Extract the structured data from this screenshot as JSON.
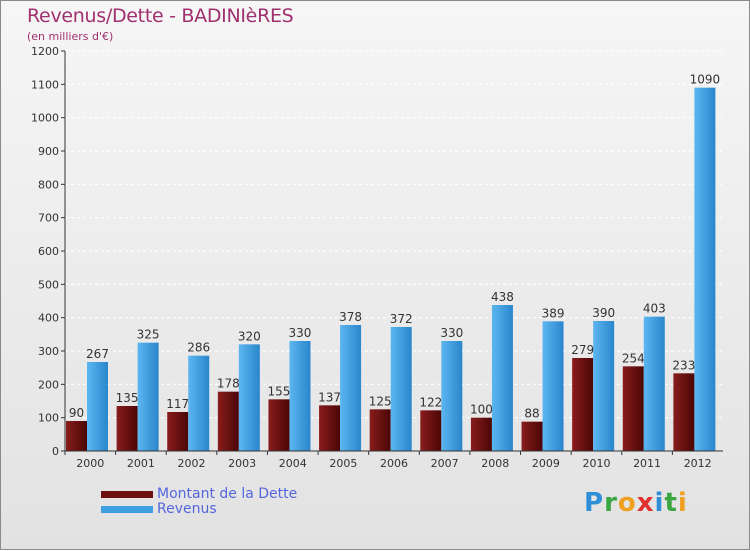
{
  "header": {
    "title": "Revenus/Dette - BADINIèRES",
    "subtitle": "(en milliers d'€)"
  },
  "chart_data": {
    "type": "bar",
    "title": "Revenus/Dette - BADINIèRES",
    "ylabel": "(en milliers d'€)",
    "xlabel": "",
    "ylim": [
      0,
      1200
    ],
    "yticks": [
      0,
      100,
      200,
      300,
      400,
      500,
      600,
      700,
      800,
      900,
      1000,
      1100,
      1200
    ],
    "grid": true,
    "categories": [
      "2000",
      "2001",
      "2002",
      "2003",
      "2004",
      "2005",
      "2006",
      "2007",
      "2008",
      "2009",
      "2010",
      "2011",
      "2012"
    ],
    "series": [
      {
        "name": "Montant de la Dette",
        "color": "#7a1010",
        "values": [
          90,
          135,
          117,
          178,
          155,
          137,
          125,
          122,
          100,
          88,
          279,
          254,
          233
        ]
      },
      {
        "name": "Revenus",
        "color": "#3f9ee0",
        "values": [
          267,
          325,
          286,
          320,
          330,
          378,
          372,
          330,
          438,
          389,
          390,
          403,
          1090
        ]
      }
    ],
    "legend": "bottom-left"
  },
  "legend": {
    "items": [
      {
        "label": "Montant de la Dette",
        "color": "#6e1010"
      },
      {
        "label": "Revenus",
        "color": "#3f9ee0"
      }
    ]
  },
  "logo": {
    "text": "Proxiti",
    "letters": [
      "P",
      "r",
      "o",
      "x",
      "i",
      "t",
      "i"
    ],
    "colors": [
      "#2e8fd8",
      "#3aa640",
      "#f0a020",
      "#e03030",
      "#2e8fd8",
      "#3aa640",
      "#f0a020"
    ]
  }
}
